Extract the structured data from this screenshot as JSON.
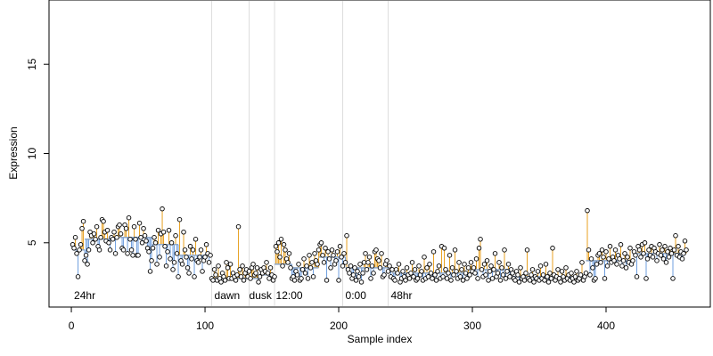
{
  "chart_data": {
    "type": "scatter",
    "xlabel": "Sample index",
    "ylabel": "Expression",
    "xlim": [
      -16.7,
      478
    ],
    "ylim": [
      1.4,
      18.6
    ],
    "xticks": [
      0,
      100,
      200,
      300,
      400
    ],
    "yticks": [
      5,
      10,
      15
    ],
    "colors": {
      "above": "#e8a020",
      "below": "#6f9fdf",
      "fit": "#8fa8c8",
      "point": "#000000",
      "vline": "#dddddd",
      "annotation": "#aaaaaa"
    },
    "vlines": [
      105,
      133,
      152,
      203,
      237
    ],
    "annotations": [
      {
        "text": "24hr",
        "x": 2
      },
      {
        "text": "dawn",
        "x": 107
      },
      {
        "text": "dusk",
        "x": 133
      },
      {
        "text": "12:00",
        "x": 153
      },
      {
        "text": "0:00",
        "x": 205
      },
      {
        "text": "48hr",
        "x": 239
      }
    ],
    "fit": [
      {
        "start": 1,
        "end": 10,
        "level": 4.6
      },
      {
        "start": 10,
        "end": 30,
        "level": 5.2
      },
      {
        "start": 30,
        "end": 60,
        "level": 5.3
      },
      {
        "start": 60,
        "end": 80,
        "level": 4.9
      },
      {
        "start": 80,
        "end": 104,
        "level": 4.3
      },
      {
        "start": 104,
        "end": 140,
        "level": 3.0
      },
      {
        "start": 140,
        "end": 152,
        "level": 3.2
      },
      {
        "start": 152,
        "end": 165,
        "level": 3.8
      },
      {
        "start": 165,
        "end": 185,
        "level": 3.6
      },
      {
        "start": 185,
        "end": 205,
        "level": 4.2
      },
      {
        "start": 205,
        "end": 240,
        "level": 3.6
      },
      {
        "start": 240,
        "end": 300,
        "level": 3.3
      },
      {
        "start": 300,
        "end": 330,
        "level": 3.5
      },
      {
        "start": 330,
        "end": 385,
        "level": 3.1
      },
      {
        "start": 385,
        "end": 420,
        "level": 4.0
      },
      {
        "start": 420,
        "end": 460,
        "level": 4.4
      }
    ],
    "x": [
      1,
      2,
      3,
      4,
      5,
      6,
      7,
      8,
      9,
      10,
      11,
      12,
      13,
      14,
      15,
      16,
      17,
      18,
      19,
      20,
      21,
      22,
      23,
      24,
      25,
      26,
      27,
      28,
      29,
      30,
      31,
      32,
      33,
      34,
      35,
      36,
      37,
      38,
      39,
      40,
      41,
      42,
      43,
      44,
      45,
      46,
      47,
      48,
      49,
      50,
      51,
      52,
      53,
      54,
      55,
      56,
      57,
      58,
      59,
      60,
      61,
      62,
      63,
      64,
      65,
      66,
      67,
      68,
      69,
      70,
      71,
      72,
      73,
      74,
      75,
      76,
      77,
      78,
      79,
      80,
      81,
      82,
      83,
      84,
      85,
      86,
      87,
      88,
      89,
      90,
      91,
      92,
      93,
      94,
      95,
      96,
      97,
      98,
      99,
      100,
      101,
      102,
      103,
      104,
      105,
      106,
      107,
      108,
      109,
      110,
      111,
      112,
      113,
      114,
      115,
      116,
      117,
      118,
      119,
      120,
      121,
      122,
      123,
      124,
      125,
      126,
      127,
      128,
      129,
      130,
      131,
      132,
      133,
      134,
      135,
      136,
      137,
      138,
      139,
      140,
      141,
      142,
      143,
      144,
      145,
      146,
      147,
      148,
      149,
      150,
      151,
      152,
      153,
      154,
      155,
      156,
      157,
      158,
      159,
      160,
      161,
      162,
      163,
      164,
      165,
      166,
      167,
      168,
      169,
      170,
      171,
      172,
      173,
      174,
      175,
      176,
      177,
      178,
      179,
      180,
      181,
      182,
      183,
      184,
      185,
      186,
      187,
      188,
      189,
      190,
      191,
      192,
      193,
      194,
      195,
      196,
      197,
      198,
      199,
      200,
      201,
      202,
      203,
      204,
      205,
      206,
      207,
      208,
      209,
      210,
      211,
      212,
      213,
      214,
      215,
      216,
      217,
      218,
      219,
      220,
      221,
      222,
      223,
      224,
      225,
      226,
      227,
      228,
      229,
      230,
      231,
      232,
      233,
      234,
      235,
      236,
      237,
      238,
      239,
      240,
      241,
      242,
      243,
      244,
      245,
      246,
      247,
      248,
      249,
      250,
      251,
      252,
      253,
      254,
      255,
      256,
      257,
      258,
      259,
      260,
      261,
      262,
      263,
      264,
      265,
      266,
      267,
      268,
      269,
      270,
      271,
      272,
      273,
      274,
      275,
      276,
      277,
      278,
      279,
      280,
      281,
      282,
      283,
      284,
      285,
      286,
      287,
      288,
      289,
      290,
      291,
      292,
      293,
      294,
      295,
      296,
      297,
      298,
      299,
      300,
      301,
      302,
      303,
      304,
      305,
      306,
      307,
      308,
      309,
      310,
      311,
      312,
      313,
      314,
      315,
      316,
      317,
      318,
      319,
      320,
      321,
      322,
      323,
      324,
      325,
      326,
      327,
      328,
      329,
      330,
      331,
      332,
      333,
      334,
      335,
      336,
      337,
      338,
      339,
      340,
      341,
      342,
      343,
      344,
      345,
      346,
      347,
      348,
      349,
      350,
      351,
      352,
      353,
      354,
      355,
      356,
      357,
      358,
      359,
      360,
      361,
      362,
      363,
      364,
      365,
      366,
      367,
      368,
      369,
      370,
      371,
      372,
      373,
      374,
      375,
      376,
      377,
      378,
      379,
      380,
      381,
      382,
      383,
      384,
      385,
      386,
      387,
      388,
      389,
      390,
      391,
      392,
      393,
      394,
      395,
      396,
      397,
      398,
      399,
      400,
      401,
      402,
      403,
      404,
      405,
      406,
      407,
      408,
      409,
      410,
      411,
      412,
      413,
      414,
      415,
      416,
      417,
      418,
      419,
      420,
      421,
      422,
      423,
      424,
      425,
      426,
      427,
      428,
      429,
      430,
      431,
      432,
      433,
      434,
      435,
      436,
      437,
      438,
      439,
      440,
      441,
      442,
      443,
      444,
      445,
      446,
      447,
      448,
      449,
      450,
      451,
      452,
      453,
      454,
      455,
      456,
      457,
      458,
      459,
      460
    ],
    "values": [
      4.9,
      4.7,
      5.3,
      4.4,
      3.1,
      4.6,
      4.9,
      5.8,
      6.2,
      4.0,
      4.3,
      3.8,
      4.6,
      5.6,
      5.4,
      5.0,
      5.5,
      5.2,
      5.9,
      4.8,
      4.6,
      5.3,
      6.3,
      6.2,
      5.6,
      5.1,
      5.7,
      5.0,
      4.6,
      5.3,
      5.2,
      5.6,
      4.4,
      5.3,
      5.9,
      6.0,
      5.5,
      4.7,
      4.6,
      6.0,
      5.8,
      4.4,
      6.4,
      5.2,
      4.6,
      4.3,
      5.9,
      5.2,
      4.3,
      4.3,
      6.1,
      5.3,
      5.0,
      5.8,
      5.4,
      5.1,
      4.7,
      4.5,
      3.4,
      4.0,
      4.7,
      5.3,
      5.0,
      3.8,
      5.7,
      4.2,
      5.5,
      6.9,
      5.6,
      4.8,
      3.7,
      4.5,
      5.7,
      4.1,
      5.0,
      3.5,
      3.9,
      5.4,
      4.4,
      3.1,
      6.3,
      4.0,
      3.8,
      5.6,
      4.6,
      4.2,
      3.6,
      3.3,
      4.8,
      4.1,
      4.6,
      3.1,
      5.2,
      4.0,
      3.9,
      4.2,
      4.6,
      3.4,
      4.0,
      4.2,
      4.9,
      4.4,
      3.9,
      4.3,
      3.0,
      2.9,
      3.5,
      3.2,
      2.9,
      3.7,
      3.0,
      2.8,
      3.3,
      3.1,
      2.9,
      3.9,
      3.6,
      3.0,
      3.8,
      3.0,
      3.3,
      3.1,
      2.9,
      3.2,
      5.9,
      3.5,
      3.1,
      3.7,
      2.9,
      3.3,
      3.5,
      3.1,
      3.4,
      3.0,
      3.6,
      3.8,
      3.2,
      3.3,
      3.6,
      2.8,
      3.1,
      3.5,
      3.3,
      3.6,
      3.4,
      3.9,
      3.3,
      3.0,
      3.6,
      3.2,
      2.9,
      3.1,
      4.8,
      4.5,
      5.0,
      4.2,
      5.2,
      3.7,
      4.9,
      4.6,
      4.1,
      3.9,
      4.4,
      3.6,
      3.0,
      3.1,
      2.9,
      3.4,
      3.2,
      3.8,
      2.9,
      3.0,
      3.5,
      4.1,
      3.3,
      3.7,
      3.0,
      4.3,
      3.6,
      3.9,
      3.1,
      4.4,
      4.0,
      3.8,
      4.6,
      4.9,
      5.0,
      4.3,
      3.9,
      4.7,
      2.9,
      4.5,
      4.1,
      3.6,
      4.6,
      4.3,
      3.8,
      4.0,
      4.5,
      2.9,
      4.8,
      4.2,
      3.7,
      4.4,
      3.9,
      5.4,
      3.5,
      3.3,
      3.7,
      3.0,
      3.2,
      3.6,
      2.9,
      3.4,
      3.1,
      3.8,
      2.8,
      3.3,
      3.9,
      4.4,
      3.5,
      3.9,
      4.2,
      3.0,
      3.7,
      3.3,
      4.5,
      4.6,
      4.1,
      4.0,
      3.6,
      4.4,
      3.1,
      3.2,
      3.8,
      4.0,
      3.4,
      3.7,
      3.1,
      3.5,
      3.0,
      2.9,
      3.5,
      3.3,
      3.8,
      2.8,
      3.0,
      3.4,
      3.1,
      2.9,
      3.6,
      3.2,
      3.0,
      3.3,
      3.9,
      3.1,
      3.5,
      2.9,
      3.0,
      3.7,
      3.2,
      3.4,
      2.9,
      4.2,
      3.0,
      3.6,
      3.1,
      3.8,
      3.3,
      3.0,
      4.5,
      3.2,
      2.9,
      3.4,
      3.7,
      3.0,
      4.8,
      3.1,
      4.7,
      3.5,
      3.0,
      3.3,
      4.3,
      2.9,
      3.6,
      3.2,
      4.6,
      3.4,
      3.0,
      3.9,
      3.1,
      3.5,
      2.9,
      3.8,
      3.3,
      3.0,
      3.6,
      3.2,
      3.9,
      3.4,
      3.6,
      3.3,
      4.1,
      3.0,
      4.7,
      5.2,
      3.5,
      3.1,
      3.8,
      3.2,
      4.0,
      2.9,
      3.4,
      3.7,
      3.0,
      3.5,
      4.4,
      3.1,
      3.3,
      3.9,
      2.9,
      3.6,
      3.2,
      4.6,
      3.0,
      3.4,
      3.8,
      3.1,
      3.5,
      3.3,
      3.0,
      2.9,
      3.4,
      3.2,
      2.8,
      3.6,
      3.0,
      3.1,
      2.9,
      3.3,
      4.6,
      3.0,
      2.9,
      3.2,
      3.5,
      2.8,
      3.1,
      3.0,
      3.4,
      2.9,
      3.7,
      3.0,
      3.2,
      2.9,
      3.8,
      3.1,
      2.8,
      3.3,
      3.0,
      4.7,
      3.2,
      2.9,
      3.1,
      3.5,
      3.0,
      2.8,
      3.4,
      3.1,
      2.9,
      3.6,
      3.0,
      3.2,
      2.9,
      3.3,
      3.0,
      2.8,
      3.1,
      3.4,
      2.9,
      3.0,
      3.2,
      3.9,
      2.9,
      3.1,
      3.3,
      6.8,
      4.6,
      3.2,
      4.1,
      3.6,
      2.9,
      3.0,
      3.8,
      4.3,
      4.4,
      3.9,
      4.6,
      4.2,
      3.0,
      4.5,
      3.7,
      4.1,
      4.8,
      3.9,
      4.2,
      4.0,
      4.6,
      3.8,
      4.3,
      4.1,
      4.9,
      3.7,
      4.0,
      4.4,
      3.6,
      4.2,
      3.9,
      4.7,
      3.8,
      4.0,
      4.5,
      4.3,
      3.1,
      4.8,
      4.6,
      4.2,
      4.9,
      4.4,
      5.0,
      3.0,
      4.1,
      4.6,
      4.3,
      4.8,
      4.2,
      4.7,
      4.5,
      4.0,
      4.4,
      4.9,
      4.3,
      4.6,
      4.1,
      4.8,
      3.9,
      4.5,
      4.2,
      4.7,
      4.4,
      3.0,
      4.6,
      5.4,
      4.3,
      4.8,
      4.2,
      4.5,
      4.1,
      4.4,
      5.1,
      4.6
    ]
  }
}
